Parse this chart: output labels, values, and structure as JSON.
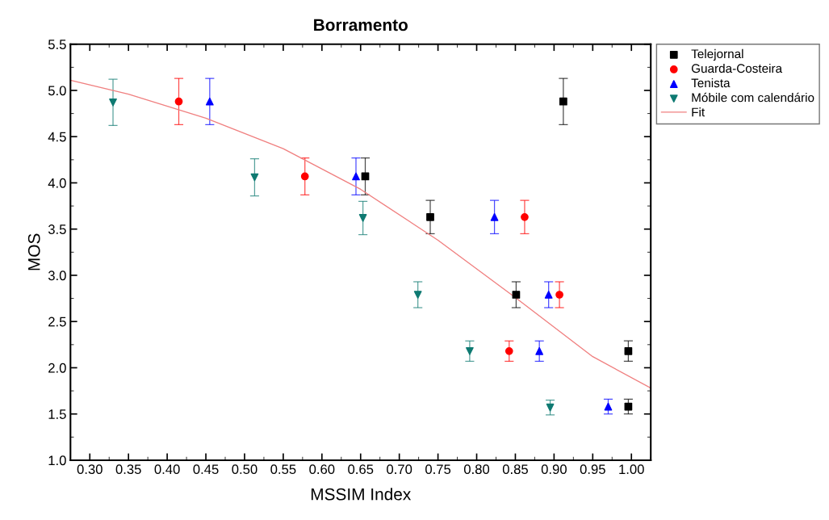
{
  "chart_data": {
    "type": "scatter",
    "title": "Borramento",
    "xlabel": "MSSIM Index",
    "ylabel": "MOS",
    "xlim": [
      0.275,
      1.025
    ],
    "ylim": [
      1.0,
      5.5
    ],
    "xticks": [
      {
        "value": 0.3,
        "label": "0.30"
      },
      {
        "value": 0.35,
        "label": "0.35"
      },
      {
        "value": 0.4,
        "label": "0.40"
      },
      {
        "value": 0.45,
        "label": "0.45"
      },
      {
        "value": 0.5,
        "label": "0.50"
      },
      {
        "value": 0.55,
        "label": "0.55"
      },
      {
        "value": 0.6,
        "label": "0.60"
      },
      {
        "value": 0.65,
        "label": "0.65"
      },
      {
        "value": 0.7,
        "label": "0.70"
      },
      {
        "value": 0.75,
        "label": "0.75"
      },
      {
        "value": 0.8,
        "label": "0.80"
      },
      {
        "value": 0.85,
        "label": "0.85"
      },
      {
        "value": 0.9,
        "label": "0.90"
      },
      {
        "value": 0.95,
        "label": "0.95"
      },
      {
        "value": 1.0,
        "label": "1.00"
      }
    ],
    "yticks": [
      {
        "value": 1.0,
        "label": "1.0"
      },
      {
        "value": 1.5,
        "label": "1.5"
      },
      {
        "value": 2.0,
        "label": "2.0"
      },
      {
        "value": 2.5,
        "label": "2.5"
      },
      {
        "value": 3.0,
        "label": "3.0"
      },
      {
        "value": 3.5,
        "label": "3.5"
      },
      {
        "value": 4.0,
        "label": "4.0"
      },
      {
        "value": 4.5,
        "label": "4.5"
      },
      {
        "value": 5.0,
        "label": "5.0"
      },
      {
        "value": 5.5,
        "label": "5.5"
      }
    ],
    "grid": false,
    "legend": "top right",
    "series": [
      {
        "name": "Telejornal",
        "color": "#000000",
        "marker": "square",
        "x": [
          0.912,
          0.656,
          0.74,
          0.851,
          0.996,
          0.996
        ],
        "values": [
          4.88,
          4.07,
          3.63,
          2.79,
          2.18,
          1.58
        ],
        "errors": [
          0.25,
          0.2,
          0.18,
          0.14,
          0.11,
          0.08
        ]
      },
      {
        "name": "Guarda-Costeira",
        "color": "#ff0000",
        "marker": "circle",
        "x": [
          0.415,
          0.578,
          0.862,
          0.907,
          0.842
        ],
        "values": [
          4.88,
          4.07,
          3.63,
          2.79,
          2.18
        ],
        "errors": [
          0.25,
          0.2,
          0.18,
          0.14,
          0.11
        ]
      },
      {
        "name": "Tenista",
        "color": "#0000ff",
        "marker": "triangle",
        "x": [
          0.455,
          0.644,
          0.823,
          0.893,
          0.881,
          0.97
        ],
        "values": [
          4.88,
          4.07,
          3.63,
          2.79,
          2.18,
          1.58
        ],
        "errors": [
          0.25,
          0.2,
          0.18,
          0.14,
          0.11,
          0.08
        ]
      },
      {
        "name": "Móbile com calendário",
        "color": "#0f7a72",
        "marker": "triangle_down",
        "x": [
          0.33,
          0.513,
          0.653,
          0.724,
          0.791,
          0.895
        ],
        "values": [
          4.87,
          4.06,
          3.62,
          2.79,
          2.18,
          1.57
        ],
        "errors": [
          0.25,
          0.2,
          0.18,
          0.14,
          0.11,
          0.08
        ]
      },
      {
        "name": "Fit",
        "type": "line",
        "color": "#f08080",
        "x": [
          0.275,
          0.35,
          0.45,
          0.55,
          0.65,
          0.75,
          0.85,
          0.95,
          1.025
        ],
        "values": [
          5.11,
          4.96,
          4.7,
          4.37,
          3.93,
          3.38,
          2.76,
          2.12,
          1.78
        ]
      }
    ]
  }
}
